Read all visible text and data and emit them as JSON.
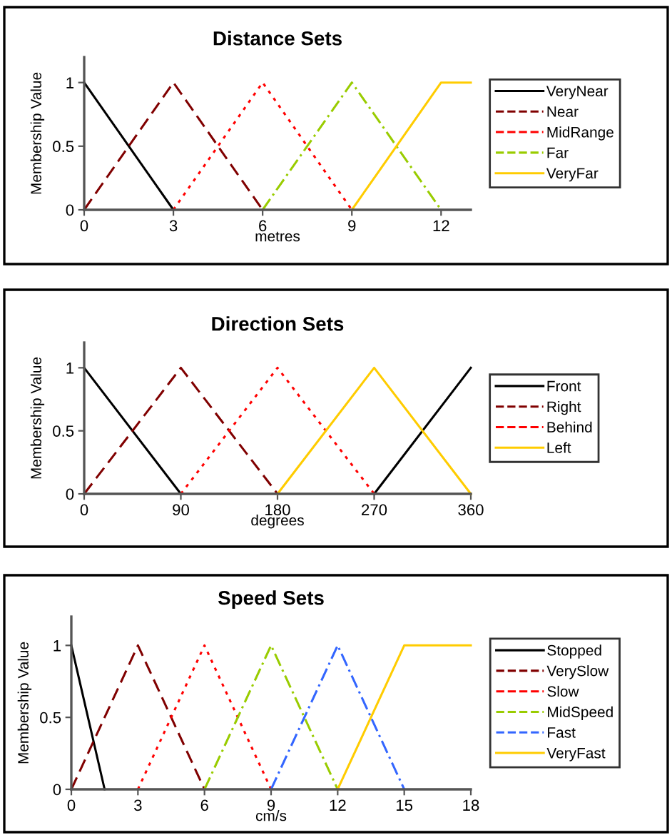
{
  "chart_data": [
    {
      "type": "line",
      "title": "Distance Sets",
      "xlabel": "metres",
      "ylabel": "Membership Value",
      "xlim": [
        0,
        13
      ],
      "ylim": [
        0,
        1.2
      ],
      "xticks": [
        0,
        3,
        6,
        9,
        12
      ],
      "yticks": [
        0,
        0.5,
        1
      ],
      "grid": false,
      "legend": "right",
      "marker": "none",
      "series": [
        {
          "name": "VeryNear",
          "color": "#000000",
          "line_style": "solid",
          "x": [
            0,
            3
          ],
          "values": [
            1,
            0
          ]
        },
        {
          "name": "Near",
          "color": "#800000",
          "line_style": "dashed",
          "x": [
            0,
            3,
            6
          ],
          "values": [
            0,
            1,
            0
          ]
        },
        {
          "name": "MidRange",
          "color": "#ff0000",
          "line_style": "dotted",
          "x": [
            3,
            6,
            9
          ],
          "values": [
            0,
            1,
            0
          ]
        },
        {
          "name": "Far",
          "color": "#99cc00",
          "line_style": "dashdot",
          "x": [
            6,
            9,
            12
          ],
          "values": [
            0,
            1,
            0
          ]
        },
        {
          "name": "VeryFar",
          "color": "#ffcc00",
          "line_style": "solid",
          "x": [
            9,
            12,
            13
          ],
          "values": [
            0,
            1,
            1
          ]
        }
      ]
    },
    {
      "type": "line",
      "title": "Direction Sets",
      "xlabel": "degrees",
      "ylabel": "Membership Value",
      "xlim": [
        0,
        360
      ],
      "ylim": [
        0,
        1.2
      ],
      "xticks": [
        0,
        90,
        180,
        270,
        360
      ],
      "yticks": [
        0,
        0.5,
        1
      ],
      "grid": false,
      "legend": "right",
      "marker": "none",
      "series": [
        {
          "name": "Front",
          "color": "#000000",
          "line_style": "solid",
          "x": [
            0,
            90,
            180,
            270,
            360
          ],
          "values": [
            1,
            0,
            null,
            0,
            1
          ]
        },
        {
          "name": "Right",
          "color": "#800000",
          "line_style": "dashed",
          "x": [
            0,
            90,
            180
          ],
          "values": [
            0,
            1,
            0
          ]
        },
        {
          "name": "Behind",
          "color": "#ff0000",
          "line_style": "dotted",
          "x": [
            90,
            180,
            270
          ],
          "values": [
            0,
            1,
            0
          ]
        },
        {
          "name": "Left",
          "color": "#ffcc00",
          "line_style": "solid",
          "x": [
            180,
            270,
            360
          ],
          "values": [
            0,
            1,
            0
          ]
        }
      ]
    },
    {
      "type": "line",
      "title": "Speed Sets",
      "xlabel": "cm/s",
      "ylabel": "Membership Value",
      "xlim": [
        0,
        18
      ],
      "ylim": [
        0,
        1.2
      ],
      "xticks": [
        0,
        3,
        6,
        9,
        12,
        15,
        18
      ],
      "yticks": [
        0,
        0.5,
        1
      ],
      "grid": false,
      "legend": "right",
      "marker": "none",
      "series": [
        {
          "name": "Stopped",
          "color": "#000000",
          "line_style": "solid",
          "x": [
            0,
            1.5
          ],
          "values": [
            1,
            0
          ]
        },
        {
          "name": "VerySlow",
          "color": "#800000",
          "line_style": "dashed",
          "x": [
            0,
            1.5,
            3,
            6
          ],
          "values": [
            0,
            0.5,
            1,
            0
          ]
        },
        {
          "name": "Slow",
          "color": "#ff0000",
          "line_style": "dotted",
          "x": [
            3,
            6,
            9
          ],
          "values": [
            0,
            1,
            0
          ]
        },
        {
          "name": "MidSpeed",
          "color": "#99cc00",
          "line_style": "dashdot",
          "x": [
            6,
            9,
            12
          ],
          "values": [
            0,
            1,
            0
          ]
        },
        {
          "name": "Fast",
          "color": "#3366ff",
          "line_style": "dashdot",
          "x": [
            9,
            12,
            15
          ],
          "values": [
            0,
            1,
            0
          ]
        },
        {
          "name": "VeryFast",
          "color": "#ffcc00",
          "line_style": "solid",
          "x": [
            12,
            15,
            18
          ],
          "values": [
            0,
            1,
            1
          ]
        }
      ]
    }
  ]
}
